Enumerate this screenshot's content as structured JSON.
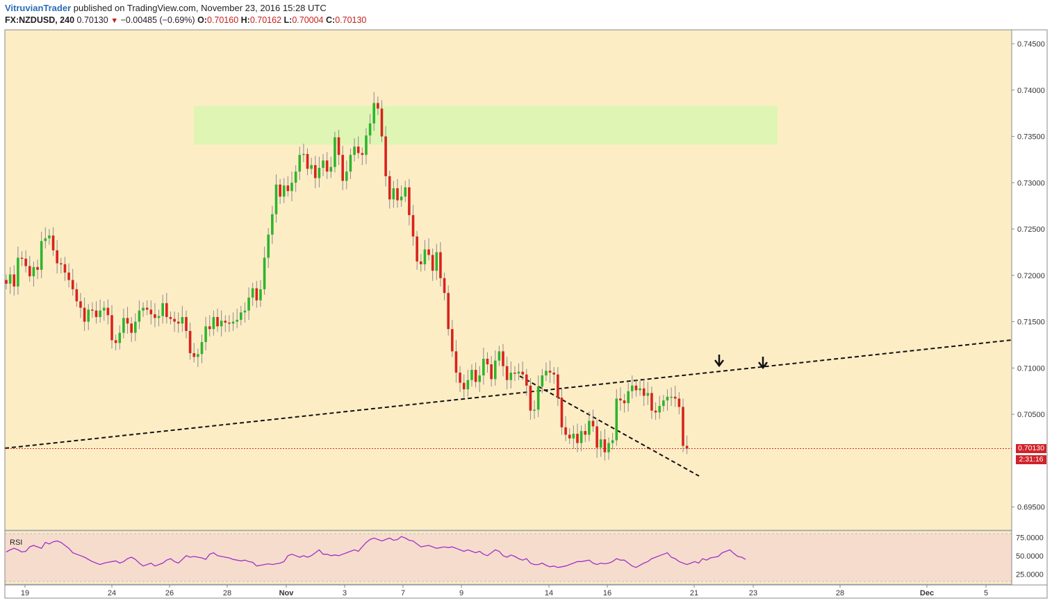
{
  "header": {
    "author": "VitruvianTrader",
    "published": "published on TradingView.com, November 23, 2016 15:28 UTC",
    "symbol": "FX:NZDUSD, 240",
    "last": "0.70130",
    "change_text": "−0.00485 (−0.69%)",
    "o_label": "O:",
    "o_value": "0.70160",
    "h_label": "H:",
    "h_value": "0.70162",
    "l_label": "L:",
    "l_value": "0.70004",
    "c_label": "C:",
    "c_value": "0.70130"
  },
  "badges": {
    "price": "0.70130",
    "countdown": "2:31:16"
  },
  "colors": {
    "background": "#fdedc5",
    "up": "#2db52d",
    "down": "#d8231e",
    "zone": "#ddf5b2",
    "rsi_bg": "#f6dccd",
    "rsi_line": "#a030c8",
    "price_line": "#d0232a"
  },
  "chart_data": {
    "type": "candlestick",
    "x_ticks": [
      "19",
      "24",
      "26",
      "28",
      "Nov",
      "3",
      "7",
      "9",
      "14",
      "16",
      "21",
      "23",
      "28",
      "Dec",
      "5"
    ],
    "y_ticks": [
      "0.74500",
      "0.74000",
      "0.73500",
      "0.73000",
      "0.72500",
      "0.72000",
      "0.71500",
      "0.71000",
      "0.70500",
      "0.69500"
    ],
    "ylim": [
      0.6925,
      0.7465
    ],
    "current_price": 0.7013,
    "resistance_zone": [
      0.7341,
      0.7383
    ],
    "closes": [
      0.7191,
      0.7201,
      0.7188,
      0.7219,
      0.7218,
      0.721,
      0.7199,
      0.7209,
      0.7206,
      0.7237,
      0.724,
      0.7243,
      0.7227,
      0.7213,
      0.7212,
      0.7203,
      0.7195,
      0.7185,
      0.7172,
      0.7165,
      0.715,
      0.7163,
      0.7162,
      0.7155,
      0.7162,
      0.7165,
      0.7157,
      0.713,
      0.7127,
      0.7138,
      0.7154,
      0.7148,
      0.7138,
      0.715,
      0.7162,
      0.7165,
      0.7163,
      0.7158,
      0.7154,
      0.7156,
      0.717,
      0.7155,
      0.7153,
      0.715,
      0.7148,
      0.7155,
      0.714,
      0.7116,
      0.7112,
      0.7115,
      0.7128,
      0.7145,
      0.7142,
      0.7155,
      0.7145,
      0.7151,
      0.7149,
      0.7148,
      0.715,
      0.7152,
      0.716,
      0.7162,
      0.7176,
      0.7186,
      0.7173,
      0.7185,
      0.7219,
      0.7244,
      0.7266,
      0.7298,
      0.7285,
      0.7297,
      0.7291,
      0.73,
      0.7312,
      0.733,
      0.7331,
      0.7315,
      0.7319,
      0.7305,
      0.7316,
      0.7324,
      0.7312,
      0.7317,
      0.7349,
      0.733,
      0.7302,
      0.7312,
      0.733,
      0.7339,
      0.7332,
      0.733,
      0.7351,
      0.7364,
      0.7386,
      0.738,
      0.735,
      0.7307,
      0.7282,
      0.7294,
      0.7281,
      0.7285,
      0.7295,
      0.7265,
      0.7242,
      0.7215,
      0.7212,
      0.7228,
      0.7222,
      0.7205,
      0.7225,
      0.7197,
      0.7181,
      0.7142,
      0.7118,
      0.7095,
      0.7084,
      0.7077,
      0.7087,
      0.7098,
      0.7085,
      0.7092,
      0.711,
      0.7104,
      0.7088,
      0.7108,
      0.7118,
      0.7102,
      0.7087,
      0.7095,
      0.7094,
      0.7096,
      0.7093,
      0.7081,
      0.7054,
      0.7055,
      0.708,
      0.7092,
      0.7097,
      0.7095,
      0.7093,
      0.7068,
      0.7036,
      0.7028,
      0.7024,
      0.7029,
      0.7019,
      0.7032,
      0.7028,
      0.7043,
      0.7037,
      0.7014,
      0.7023,
      0.7009,
      0.7019,
      0.7022,
      0.7067,
      0.7065,
      0.7062,
      0.7075,
      0.7081,
      0.7076,
      0.7078,
      0.707,
      0.7073,
      0.7054,
      0.7052,
      0.7059,
      0.7065,
      0.7069,
      0.7069,
      0.7067,
      0.7058,
      0.7016,
      0.7013
    ],
    "rsi": {
      "label": "RSI",
      "y_ticks": [
        "75.0000",
        "50.0000",
        "25.0000"
      ],
      "values": [
        55,
        58,
        60,
        58,
        55,
        56,
        62,
        64,
        62,
        60,
        68,
        66,
        69,
        70,
        68,
        64,
        60,
        54,
        52,
        50,
        48,
        45,
        42,
        40,
        38,
        40,
        41,
        42,
        43,
        40,
        42,
        46,
        48,
        45,
        40,
        36,
        38,
        40,
        36,
        38,
        40,
        44,
        46,
        42,
        40,
        45,
        50,
        48,
        49,
        48,
        47,
        45,
        52,
        54,
        50,
        49,
        48,
        47,
        45,
        44,
        43,
        44,
        42,
        41,
        36,
        37,
        38,
        39,
        38,
        39,
        40,
        42,
        50,
        52,
        50,
        48,
        50,
        48,
        50,
        54,
        58,
        52,
        52,
        50,
        51,
        50,
        52,
        54,
        56,
        58,
        56,
        62,
        68,
        72,
        74,
        72,
        70,
        72,
        74,
        71,
        72,
        76,
        74,
        71,
        70,
        66,
        62,
        63,
        64,
        62,
        60,
        61,
        62,
        61,
        62,
        60,
        58,
        56,
        58,
        56,
        54,
        56,
        52,
        50,
        54,
        58,
        56,
        50,
        48,
        51,
        49,
        46,
        44,
        46,
        40,
        38,
        38,
        40,
        37,
        35,
        36,
        34,
        35,
        36,
        38,
        40,
        42,
        42,
        43,
        44,
        40,
        38,
        40,
        39,
        40,
        42,
        46,
        44,
        44,
        40,
        36,
        34,
        37,
        40,
        42,
        46,
        48,
        50,
        52,
        54,
        48,
        46,
        42,
        40,
        38,
        40,
        42,
        40,
        46,
        44,
        47,
        48,
        49,
        54,
        56,
        58,
        53,
        49,
        48,
        45
      ]
    }
  }
}
